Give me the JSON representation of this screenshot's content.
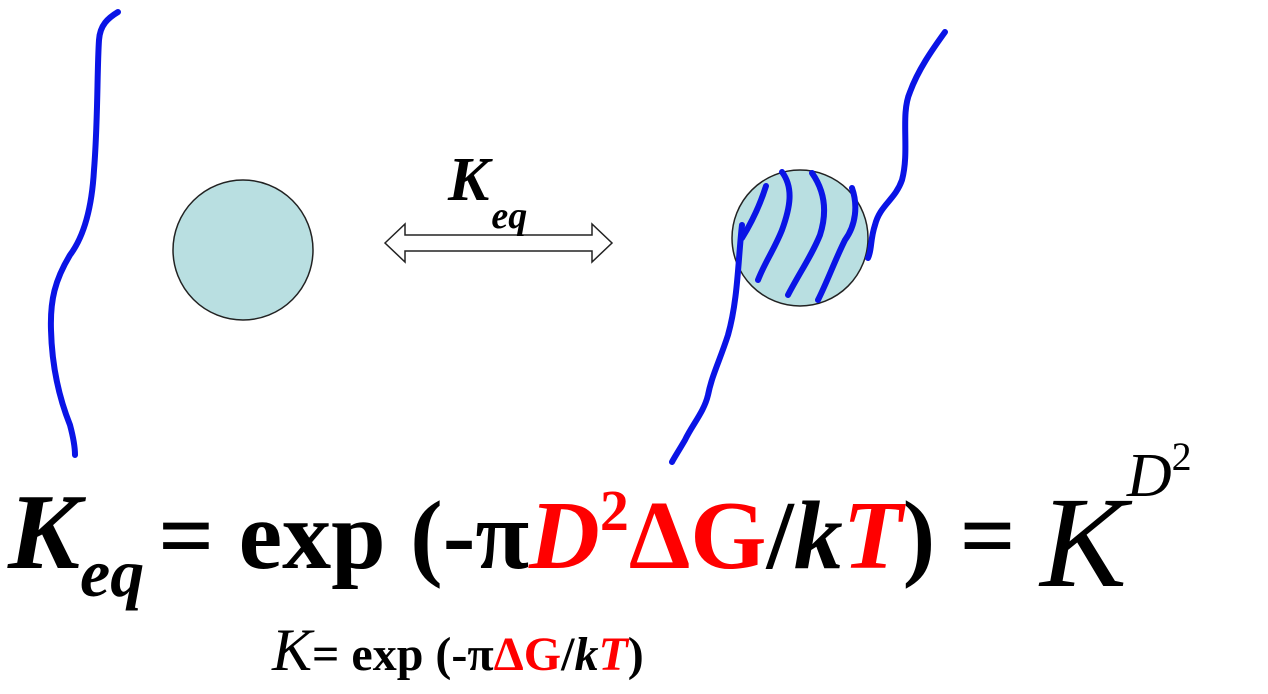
{
  "arrow_label": {
    "main": "K",
    "sub": "eq"
  },
  "equation": {
    "lhs": "K",
    "lhs_sub": "eq",
    "eq_exp": "= exp (-π",
    "D": "D",
    "D_exp": "2",
    "dG": "ΔG",
    "slash": "/",
    "k": "k",
    "T": "T",
    "close_eq": ") = ",
    "rhs": "K",
    "rhs_sup": "D",
    "rhs_sup_exp": "2"
  },
  "equation2": {
    "lhs": "K",
    "eq_exp": "= exp (-π",
    "dG": "ΔG",
    "slash": "/",
    "k": "k",
    "T": "T",
    "close": ")"
  }
}
